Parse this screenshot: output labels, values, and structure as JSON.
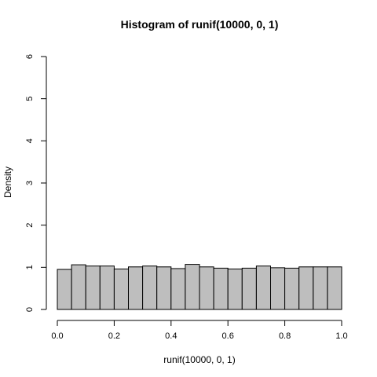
{
  "chart_data": {
    "type": "bar",
    "title": "Histogram of runif(10000, 0, 1)",
    "xlabel": "runif(10000, 0, 1)",
    "ylabel": "Density",
    "xlim": [
      0,
      1
    ],
    "ylim": [
      0,
      6
    ],
    "bin_width": 0.05,
    "bin_starts": [
      0.0,
      0.05,
      0.1,
      0.15,
      0.2,
      0.25,
      0.3,
      0.35,
      0.4,
      0.45,
      0.5,
      0.55,
      0.6,
      0.65,
      0.7,
      0.75,
      0.8,
      0.85,
      0.9,
      0.95
    ],
    "values": [
      0.95,
      1.06,
      1.03,
      1.03,
      0.96,
      1.01,
      1.03,
      1.01,
      0.97,
      1.07,
      1.01,
      0.98,
      0.96,
      0.98,
      1.03,
      0.99,
      0.98,
      1.01,
      1.01,
      1.01
    ],
    "x_ticks": [
      "0.0",
      "0.2",
      "0.4",
      "0.6",
      "0.8",
      "1.0"
    ],
    "x_tick_values": [
      0.0,
      0.2,
      0.4,
      0.6,
      0.8,
      1.0
    ],
    "y_ticks": [
      "0",
      "1",
      "2",
      "3",
      "4",
      "5",
      "6"
    ],
    "y_tick_values": [
      0,
      1,
      2,
      3,
      4,
      5,
      6
    ],
    "bar_color": "#bebebe",
    "edge_color": "#000000"
  }
}
